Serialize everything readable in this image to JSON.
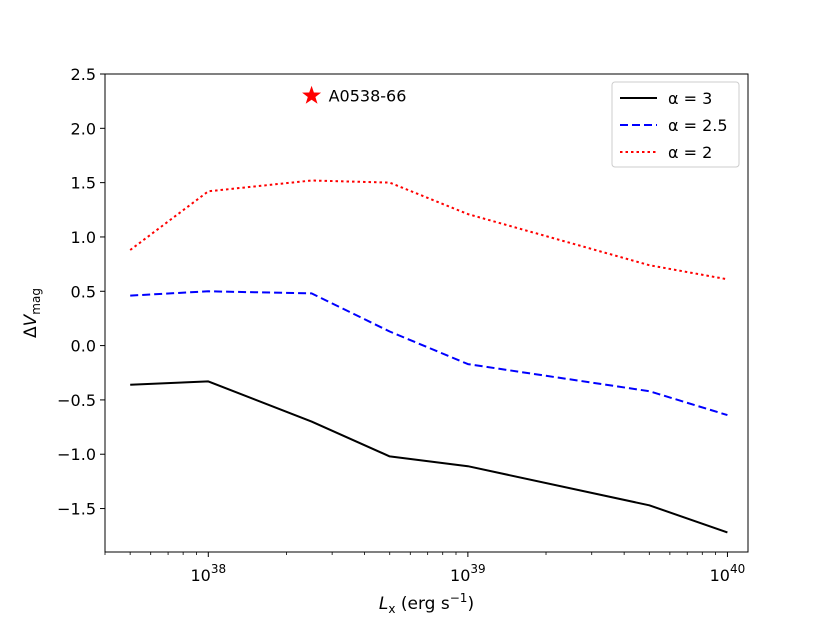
{
  "chart_data": {
    "type": "line",
    "title": "",
    "xlabel": {
      "var": "L",
      "sub": "x",
      "unit": " (erg s",
      "exp": "−1",
      "close": ")"
    },
    "ylabel": {
      "prefix": "Δ",
      "var": "V",
      "sub": "mag"
    },
    "xscale": "log",
    "xlim": [
      4e+37,
      1.2e+40
    ],
    "ylim": [
      -1.9,
      2.5
    ],
    "x_ticks": [
      {
        "base": "10",
        "exp": "38",
        "value": 1e+38
      },
      {
        "base": "10",
        "exp": "39",
        "value": 1e+39
      },
      {
        "base": "10",
        "exp": "40",
        "value": 1e+40
      }
    ],
    "y_ticks": [
      {
        "label": "2.5",
        "value": 2.5
      },
      {
        "label": "2.0",
        "value": 2.0
      },
      {
        "label": "1.5",
        "value": 1.5
      },
      {
        "label": "1.0",
        "value": 1.0
      },
      {
        "label": "0.5",
        "value": 0.5
      },
      {
        "label": "0.0",
        "value": 0.0
      },
      {
        "label": "−0.5",
        "value": -0.5
      },
      {
        "label": "−1.0",
        "value": -1.0
      },
      {
        "label": "−1.5",
        "value": -1.5
      }
    ],
    "x": [
      5e+37,
      1e+38,
      2.5e+38,
      5e+38,
      1e+39,
      5e+39,
      1e+40
    ],
    "series": [
      {
        "name": "α = 3",
        "color": "#000000",
        "dash": "solid",
        "values": [
          -0.36,
          -0.33,
          -0.7,
          -1.02,
          -1.11,
          -1.47,
          -1.72
        ]
      },
      {
        "name": "α = 2.5",
        "color": "#0000ff",
        "dash": "dashed",
        "values": [
          0.46,
          0.5,
          0.48,
          0.13,
          -0.17,
          -0.42,
          -0.64
        ]
      },
      {
        "name": "α = 2",
        "color": "#ff0000",
        "dash": "dotted",
        "values": [
          0.88,
          1.42,
          1.52,
          1.5,
          1.21,
          0.74,
          0.61
        ]
      }
    ],
    "annotations": [
      {
        "label": "A0538-66",
        "x": 2.5e+38,
        "y": 2.3,
        "marker": "star",
        "color": "#ff0000"
      }
    ],
    "legend": "top-right",
    "grid": false
  }
}
